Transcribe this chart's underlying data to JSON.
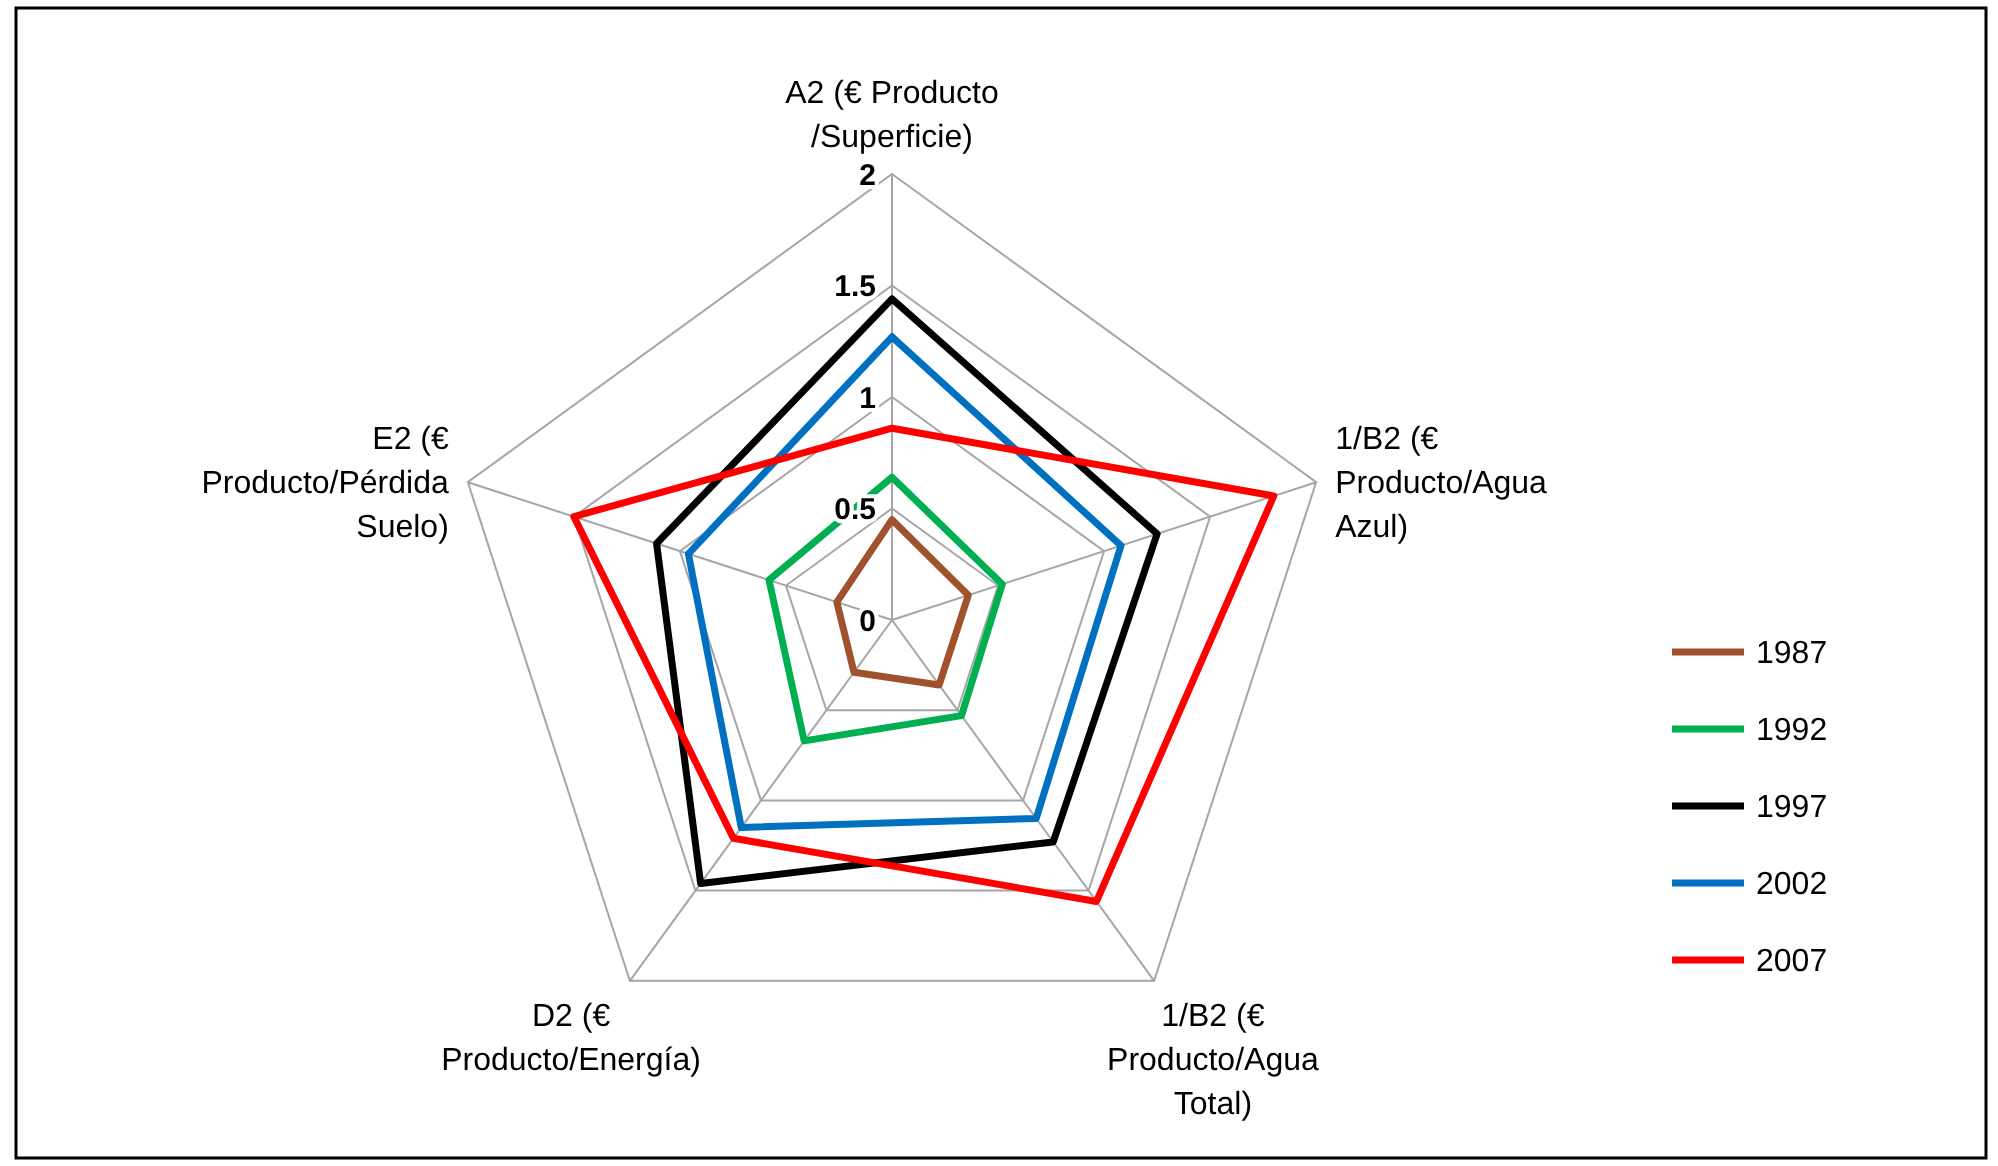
{
  "chart_data": {
    "type": "radar",
    "categories": [
      "A2 (€  Producto /Superficie)",
      "1/B2 (€ Producto/Agua Azul)",
      "1/B2 (€ Producto/Agua Total)",
      "D2  (€ Producto/Energía)",
      "E2 (€ Producto/Pérdida Suelo)"
    ],
    "series": [
      {
        "name": "1987",
        "color": "#a0522d",
        "values": [
          0.45,
          0.36,
          0.36,
          0.29,
          0.26
        ]
      },
      {
        "name": "1992",
        "color": "#00b050",
        "values": [
          0.64,
          0.52,
          0.53,
          0.67,
          0.58
        ]
      },
      {
        "name": "1997",
        "color": "#000000",
        "values": [
          1.44,
          1.25,
          1.23,
          1.46,
          1.11
        ]
      },
      {
        "name": "2002",
        "color": "#0070c0",
        "values": [
          1.27,
          1.08,
          1.1,
          1.15,
          0.96
        ]
      },
      {
        "name": "2007",
        "color": "#ff0000",
        "values": [
          0.86,
          1.8,
          1.56,
          1.21,
          1.5
        ]
      }
    ],
    "ylim": [
      0,
      2
    ],
    "yticks": [
      0,
      0.5,
      1,
      1.5,
      2
    ],
    "legend": "right"
  }
}
